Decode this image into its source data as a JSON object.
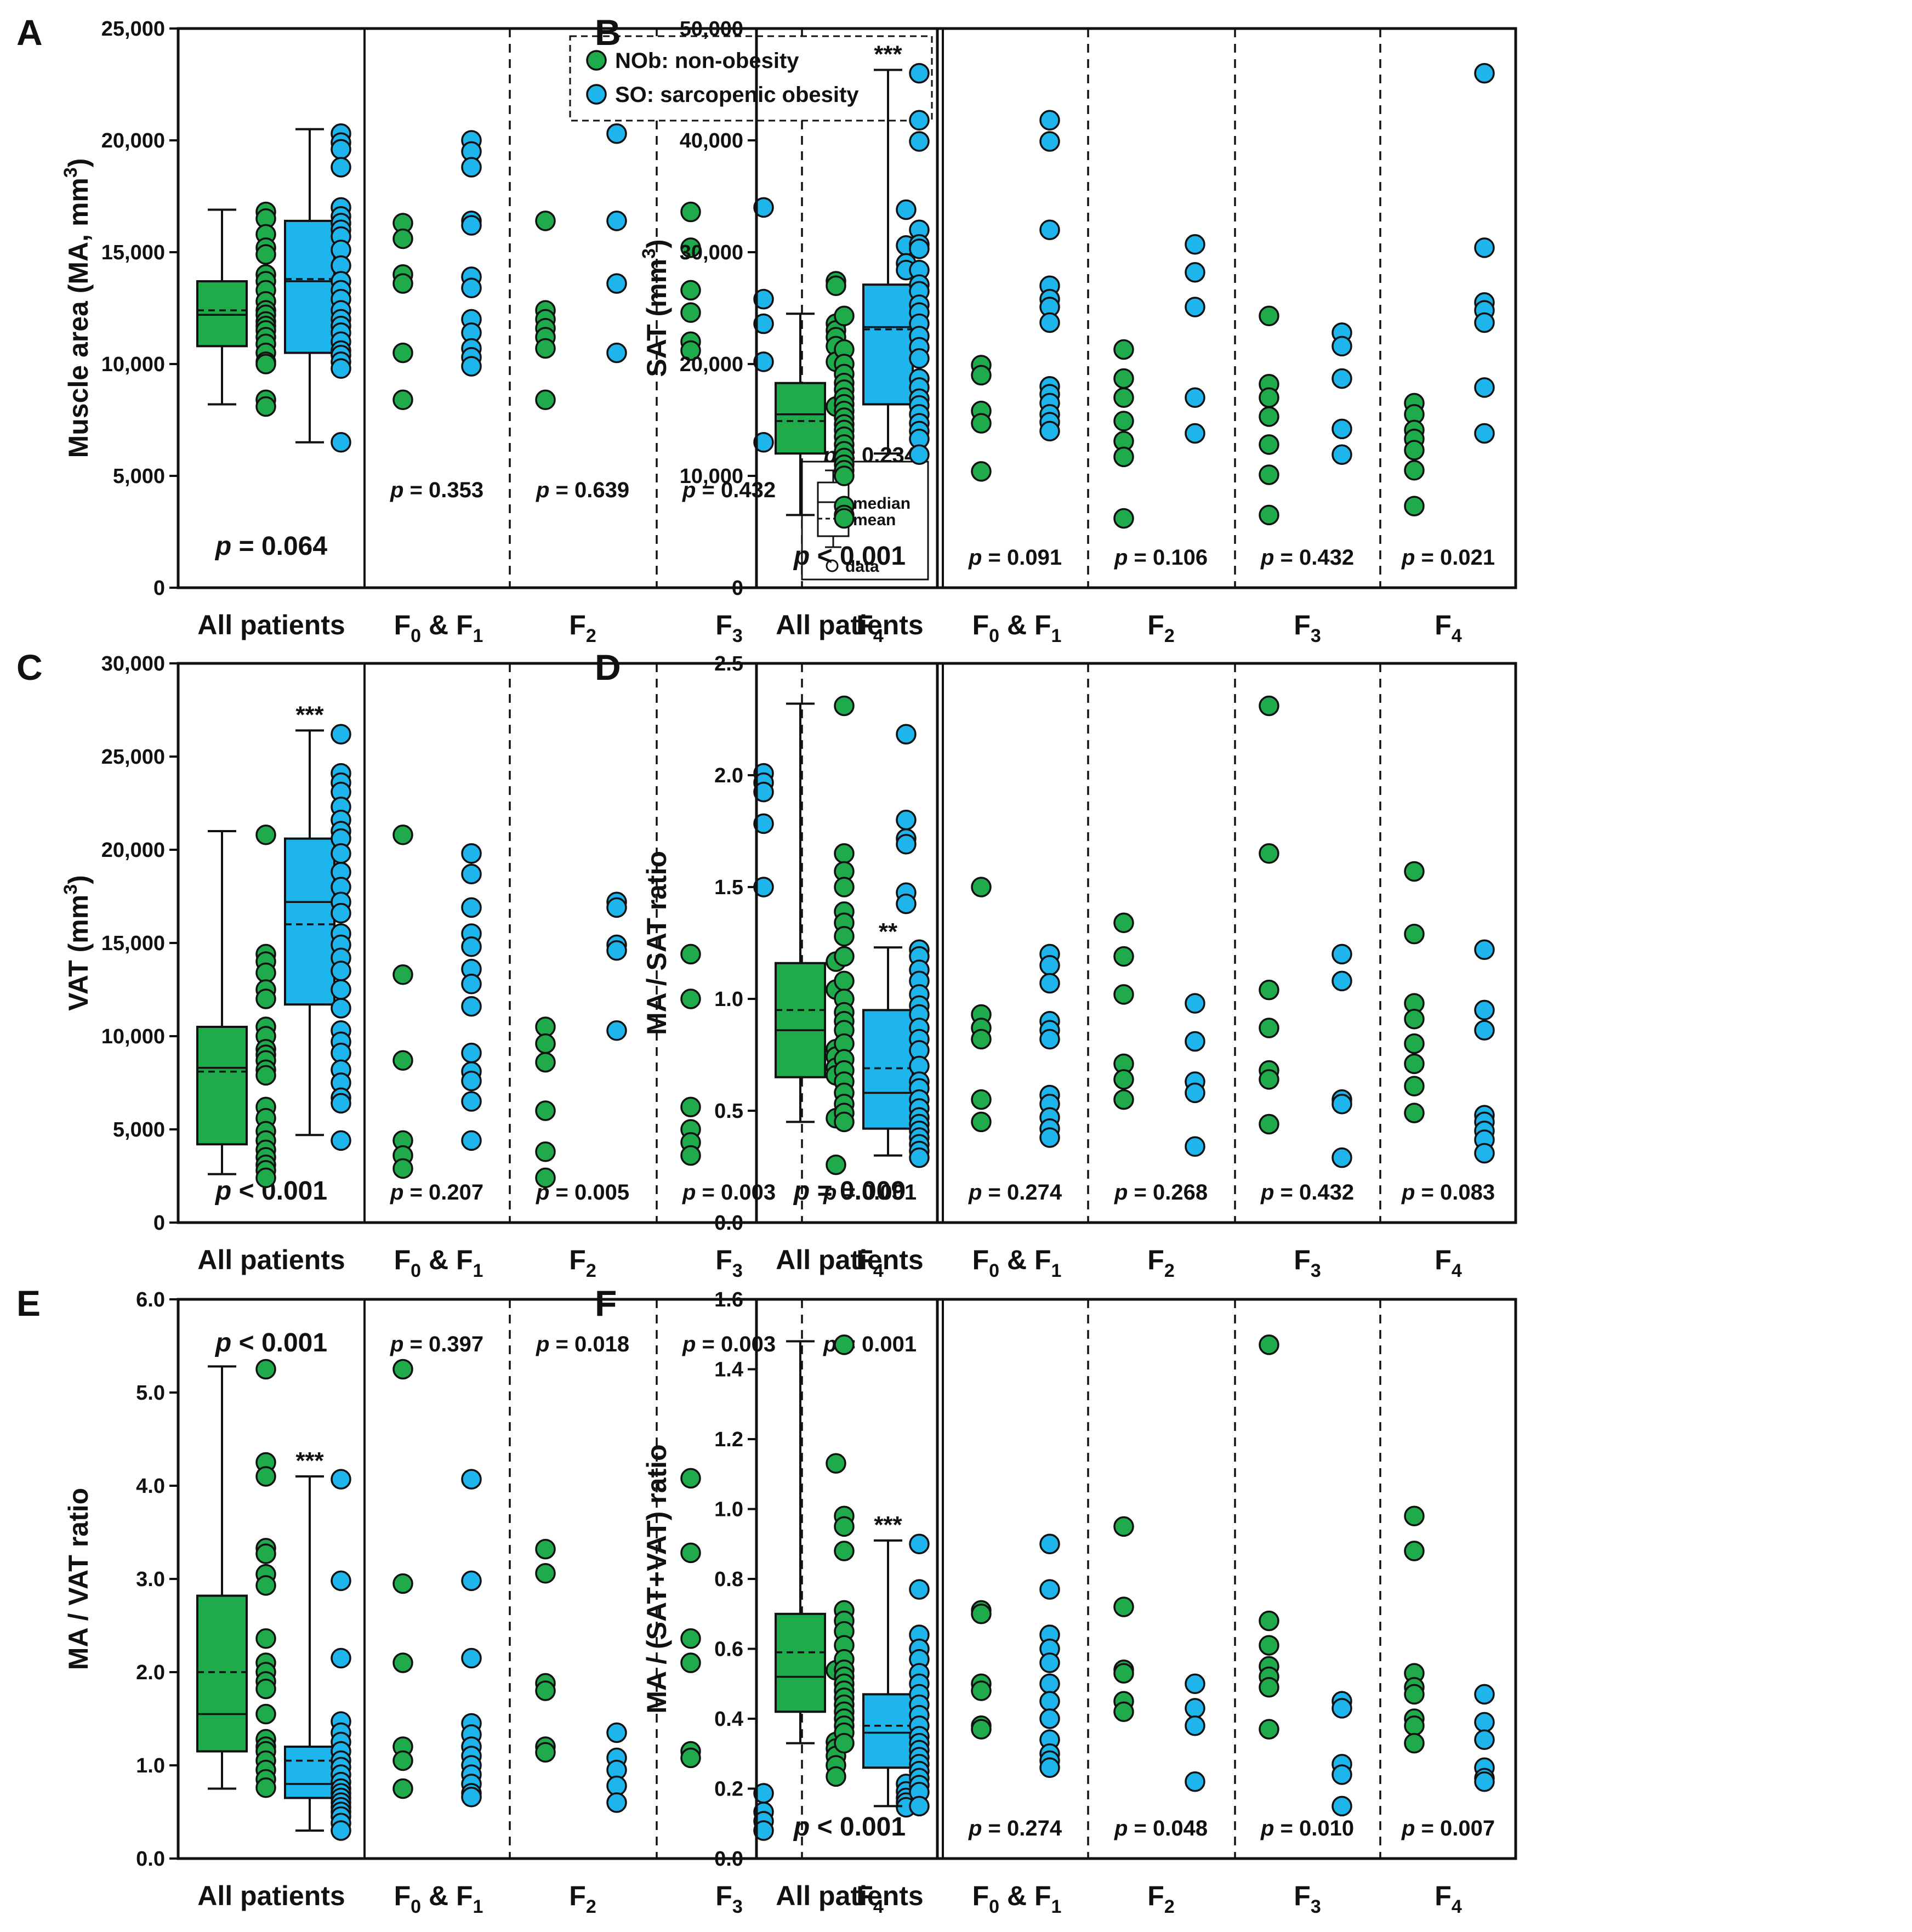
{
  "legend": {
    "nob_label": "NOb: non-obesity",
    "so_label": "SO: sarcopenic obesity",
    "key_median": "median",
    "key_mean": "mean",
    "key_data": "data"
  },
  "colors": {
    "nob": "#1faa4b",
    "so": "#1eb4ec",
    "axis": "#111111"
  },
  "groups": [
    "All patients",
    "F",
    "F",
    "F",
    "F"
  ],
  "group_subscripts": [
    [
      "0",
      "1"
    ],
    [
      "2"
    ],
    [
      "3"
    ],
    [
      "4"
    ]
  ],
  "chart_data": [
    {
      "type": "box+scatter",
      "letter": "A",
      "ylabel": "Muscle area (MA, mm3)",
      "ylim": [
        0,
        25000
      ],
      "yticks": [
        "0",
        "5,000",
        "10,000",
        "15,000",
        "20,000",
        "25,000"
      ],
      "yvals": [
        0,
        5000,
        10000,
        15000,
        20000,
        25000
      ],
      "pvalue_row": "bottom",
      "pvalues": [
        "p = 0.064",
        "p = 0.353",
        "p = 0.639",
        "p = 0.432",
        "p = 0.234"
      ],
      "box_nob": {
        "min": 8200,
        "q1": 10800,
        "median": 12200,
        "mean": 12400,
        "q3": 13700,
        "max": 16900
      },
      "box_so": {
        "min": 6500,
        "q1": 10500,
        "median": 13700,
        "mean": 13800,
        "q3": 16400,
        "max": 20500
      },
      "stars_so": "",
      "all_nob": [
        16800,
        16500,
        15800,
        15200,
        14900,
        14000,
        13700,
        13300,
        12800,
        12400,
        12200,
        11900,
        11700,
        11500,
        11200,
        10900,
        10500,
        10100,
        10000,
        8400,
        8100
      ],
      "all_so": [
        20300,
        19900,
        19600,
        18800,
        17000,
        16600,
        16300,
        16000,
        15700,
        15100,
        14400,
        13700,
        13300,
        12900,
        12400,
        12000,
        11700,
        11400,
        11000,
        10600,
        10400,
        10100,
        9800,
        6500
      ],
      "f01_nob": [
        16300,
        15600,
        14000,
        13600,
        10500,
        8400
      ],
      "f01_so": [
        20000,
        19500,
        18800,
        16400,
        16200,
        13900,
        13400,
        12000,
        11400,
        10700,
        10300,
        9900
      ],
      "f2_nob": [
        16400,
        12400,
        12000,
        11600,
        11200,
        10700,
        8400
      ],
      "f2_so": [
        20300,
        16400,
        13600,
        10500
      ],
      "f3_nob": [
        16800,
        15200,
        13300,
        12300,
        11000,
        10600
      ],
      "f3_so": [
        17000,
        12900,
        11800,
        10100,
        6500
      ],
      "f4_nob": [
        13700,
        13500,
        11800,
        11500,
        11200,
        10800,
        10100,
        8100
      ],
      "f4_so": [
        16900,
        15300,
        14500,
        14200,
        13100,
        11400,
        10300,
        9400
      ]
    },
    {
      "type": "box+scatter",
      "letter": "B",
      "ylabel": "SAT (mm3)",
      "ylim": [
        0,
        50000
      ],
      "yticks": [
        "0",
        "10,000",
        "20,000",
        "30,000",
        "40,000",
        "50,000"
      ],
      "yvals": [
        0,
        10000,
        20000,
        30000,
        40000,
        50000
      ],
      "pvalue_row": "bottom",
      "pvalues": [
        "p < 0.001",
        "p = 0.091",
        "p = 0.106",
        "p = 0.432",
        "p = 0.021"
      ],
      "box_nob": {
        "min": 6500,
        "q1": 12000,
        "median": 15500,
        "mean": 14900,
        "q3": 18300,
        "max": 24500
      },
      "box_so": {
        "min": 12000,
        "q1": 16400,
        "median": 23300,
        "mean": 23100,
        "q3": 27100,
        "max": 46300
      },
      "stars_so": "***",
      "all_nob": [
        24300,
        21300,
        20000,
        19100,
        18300,
        17700,
        17000,
        16400,
        15800,
        15200,
        14600,
        14100,
        13500,
        12800,
        12200,
        11600,
        11000,
        10500,
        10000,
        7300,
        6500,
        6200
      ],
      "all_so": [
        46000,
        41800,
        39900,
        32000,
        30700,
        30300,
        28400,
        27100,
        26500,
        25300,
        24600,
        23600,
        22500,
        21500,
        20500,
        18700,
        17900,
        16900,
        16300,
        15500,
        14700,
        14000,
        13300,
        11900
      ],
      "f01_nob": [
        19900,
        19000,
        15800,
        14700,
        10400
      ],
      "f01_so": [
        41800,
        39900,
        32000,
        27000,
        25800,
        25100,
        23700,
        18000,
        17300,
        16500,
        15500,
        14800,
        14000
      ],
      "f2_nob": [
        21300,
        18700,
        17000,
        14900,
        13100,
        11700,
        6200
      ],
      "f2_so": [
        30700,
        28200,
        25100,
        17000,
        13800
      ],
      "f3_nob": [
        24300,
        18200,
        17000,
        15300,
        12800,
        10100,
        6500
      ],
      "f3_so": [
        22800,
        21600,
        18700,
        14200,
        11900
      ],
      "f4_nob": [
        16500,
        15500,
        14100,
        13300,
        12300,
        10500,
        7300
      ],
      "f4_so": [
        46000,
        30400,
        25500,
        24800,
        23700,
        17900,
        13800
      ]
    },
    {
      "type": "box+scatter",
      "letter": "C",
      "ylabel": "VAT (mm3)",
      "ylim": [
        0,
        30000
      ],
      "yticks": [
        "0",
        "5,000",
        "10,000",
        "15,000",
        "20,000",
        "25,000",
        "30,000"
      ],
      "yvals": [
        0,
        5000,
        10000,
        15000,
        20000,
        25000,
        30000
      ],
      "pvalue_row": "bottom",
      "pvalues": [
        "p < 0.001",
        "p = 0.207",
        "p = 0.005",
        "p = 0.003",
        "p = 0.001"
      ],
      "box_nob": {
        "min": 2600,
        "q1": 4200,
        "median": 8300,
        "mean": 8100,
        "q3": 10500,
        "max": 21000
      },
      "box_so": {
        "min": 4700,
        "q1": 11700,
        "median": 17200,
        "mean": 16000,
        "q3": 20600,
        "max": 26400
      },
      "stars_so": "***",
      "all_nob": [
        20800,
        14400,
        14000,
        13400,
        12500,
        12000,
        10500,
        10000,
        9300,
        9000,
        8700,
        8200,
        7900,
        6200,
        5600,
        4900,
        4400,
        3900,
        3500,
        3100,
        2800,
        2400
      ],
      "all_so": [
        26200,
        24100,
        23600,
        23100,
        22300,
        21600,
        21000,
        20600,
        19800,
        18800,
        18000,
        17200,
        16600,
        15500,
        14900,
        14200,
        13500,
        12500,
        11500,
        10300,
        9700,
        9100,
        8200,
        7500,
        6700,
        6400,
        4400
      ],
      "f01_nob": [
        20800,
        13300,
        8700,
        4400,
        3600,
        2900
      ],
      "f01_so": [
        19800,
        18700,
        16900,
        15500,
        14800,
        13600,
        12800,
        11600,
        9100,
        8100,
        7600,
        6500,
        4400
      ],
      "f2_nob": [
        10500,
        9600,
        8600,
        6000,
        3800,
        2400
      ],
      "f2_so": [
        17200,
        16900,
        14900,
        14600,
        10300
      ],
      "f3_nob": [
        14400,
        12000,
        6200,
        5000,
        4300,
        3600
      ],
      "f3_so": [
        24100,
        23600,
        23100,
        21400,
        18000
      ],
      "f4_nob": [
        14000,
        12500,
        9300,
        8900,
        8300,
        7900,
        5600,
        3100
      ],
      "f4_so": [
        26200,
        21600,
        20600,
        20300,
        17700,
        17100,
        9700
      ]
    },
    {
      "type": "box+scatter",
      "letter": "D",
      "ylabel": "MA / SAT ratio",
      "ylim": [
        0,
        2.5
      ],
      "yticks": [
        "0.0",
        "0.5",
        "1.0",
        "1.5",
        "2.0",
        "2.5"
      ],
      "yvals": [
        0,
        0.5,
        1.0,
        1.5,
        2.0,
        2.5
      ],
      "pvalue_row": "bottom",
      "pvalues": [
        "p = 0.009",
        "p = 0.274",
        "p = 0.268",
        "p = 0.432",
        "p = 0.083"
      ],
      "box_nob": {
        "min": 0.45,
        "q1": 0.65,
        "median": 0.86,
        "mean": 0.95,
        "q3": 1.16,
        "max": 2.32
      },
      "box_so": {
        "min": 0.3,
        "q1": 0.42,
        "median": 0.58,
        "mean": 0.69,
        "q3": 0.95,
        "max": 1.23
      },
      "stars_so": "**",
      "all_nob": [
        2.31,
        1.65,
        1.57,
        1.5,
        1.39,
        1.34,
        1.28,
        1.19,
        1.08,
        1.0,
        0.94,
        0.9,
        0.86,
        0.8,
        0.73,
        0.68,
        0.63,
        0.58,
        0.53,
        0.49,
        0.45
      ],
      "all_so": [
        1.22,
        1.19,
        1.13,
        1.08,
        1.02,
        0.97,
        0.93,
        0.87,
        0.82,
        0.77,
        0.7,
        0.63,
        0.6,
        0.55,
        0.51,
        0.47,
        0.44,
        0.41,
        0.38,
        0.35,
        0.32,
        0.29
      ],
      "f01_nob": [
        1.5,
        0.93,
        0.87,
        0.82,
        0.55,
        0.45
      ],
      "f01_so": [
        1.2,
        1.15,
        1.07,
        0.9,
        0.86,
        0.82,
        0.57,
        0.53,
        0.47,
        0.42,
        0.38
      ],
      "f2_nob": [
        1.34,
        1.19,
        1.02,
        0.71,
        0.64,
        0.55
      ],
      "f2_so": [
        0.98,
        0.81,
        0.63,
        0.58,
        0.34
      ],
      "f3_nob": [
        2.31,
        1.65,
        1.04,
        0.87,
        0.68,
        0.64,
        0.44
      ],
      "f3_so": [
        1.2,
        1.08,
        0.55,
        0.53,
        0.29
      ],
      "f4_nob": [
        1.57,
        1.29,
        0.98,
        0.91,
        0.8,
        0.71,
        0.61,
        0.49
      ],
      "f4_so": [
        1.22,
        0.95,
        0.86,
        0.48,
        0.45,
        0.41,
        0.37,
        0.31
      ]
    },
    {
      "type": "box+scatter",
      "letter": "E",
      "ylabel": "MA / VAT ratio",
      "ylim": [
        0,
        6
      ],
      "yticks": [
        "0.0",
        "1.0",
        "2.0",
        "3.0",
        "4.0",
        "5.0",
        "6.0"
      ],
      "yvals": [
        0,
        1,
        2,
        3,
        4,
        5,
        6
      ],
      "pvalue_row": "top",
      "pvalues": [
        "p < 0.001",
        "p = 0.397",
        "p = 0.018",
        "p = 0.003",
        "p = 0.001"
      ],
      "box_nob": {
        "min": 0.75,
        "q1": 1.15,
        "median": 1.55,
        "mean": 2.0,
        "q3": 2.82,
        "max": 5.28
      },
      "box_so": {
        "min": 0.3,
        "q1": 0.65,
        "median": 0.8,
        "mean": 1.05,
        "q3": 1.2,
        "max": 4.1
      },
      "stars_so": "***",
      "all_nob": [
        5.25,
        4.25,
        4.1,
        3.33,
        3.27,
        3.05,
        2.93,
        2.36,
        2.1,
        2.0,
        1.9,
        1.82,
        1.55,
        1.28,
        1.2,
        1.15,
        1.05,
        0.95,
        0.85,
        0.76
      ],
      "all_so": [
        4.07,
        2.98,
        2.15,
        1.47,
        1.35,
        1.25,
        1.15,
        1.05,
        0.98,
        0.9,
        0.82,
        0.75,
        0.7,
        0.65,
        0.6,
        0.55,
        0.5,
        0.45,
        0.38,
        0.3
      ],
      "f01_nob": [
        5.25,
        2.95,
        2.1,
        1.2,
        1.05,
        0.75
      ],
      "f01_so": [
        4.07,
        2.98,
        2.15,
        1.45,
        1.33,
        1.2,
        1.1,
        1.0,
        0.9,
        0.8,
        0.7,
        0.66
      ],
      "f2_nob": [
        3.32,
        3.06,
        1.88,
        1.8,
        1.2,
        1.14
      ],
      "f2_so": [
        1.35,
        1.08,
        0.95,
        0.78,
        0.6
      ],
      "f3_nob": [
        4.08,
        3.28,
        2.36,
        2.1,
        1.15,
        1.08
      ],
      "f3_so": [
        0.7,
        0.5,
        0.4,
        0.3
      ],
      "f4_nob": [
        4.24,
        2.02,
        1.25,
        1.18,
        1.1,
        1.0,
        0.88
      ],
      "f4_so": [
        1.16,
        0.8,
        0.72,
        0.65,
        0.6,
        0.55
      ]
    },
    {
      "type": "box+scatter",
      "letter": "F",
      "ylabel": "MA / (SAT+VAT) ratio",
      "ylim": [
        0,
        1.6
      ],
      "yticks": [
        "0.0",
        "0.2",
        "0.4",
        "0.6",
        "0.8",
        "1.0",
        "1.2",
        "1.4",
        "1.6"
      ],
      "yvals": [
        0,
        0.2,
        0.4,
        0.6,
        0.8,
        1.0,
        1.2,
        1.4,
        1.6
      ],
      "pvalue_row": "bottom",
      "pvalues": [
        "p < 0.001",
        "p = 0.274",
        "p = 0.048",
        "p = 0.010",
        "p = 0.007"
      ],
      "box_nob": {
        "min": 0.33,
        "q1": 0.42,
        "median": 0.52,
        "mean": 0.59,
        "q3": 0.7,
        "max": 1.48
      },
      "box_so": {
        "min": 0.15,
        "q1": 0.26,
        "median": 0.36,
        "mean": 0.38,
        "q3": 0.47,
        "max": 0.91
      },
      "stars_so": "***",
      "all_nob": [
        1.47,
        0.98,
        0.95,
        0.88,
        0.71,
        0.68,
        0.65,
        0.61,
        0.57,
        0.54,
        0.52,
        0.5,
        0.48,
        0.46,
        0.44,
        0.42,
        0.4,
        0.38,
        0.36,
        0.33
      ],
      "all_so": [
        0.9,
        0.77,
        0.64,
        0.6,
        0.57,
        0.53,
        0.5,
        0.47,
        0.44,
        0.41,
        0.38,
        0.35,
        0.33,
        0.31,
        0.29,
        0.27,
        0.25,
        0.23,
        0.21,
        0.19,
        0.15
      ],
      "f01_nob": [
        0.71,
        0.7,
        0.5,
        0.48,
        0.38,
        0.37
      ],
      "f01_so": [
        0.9,
        0.77,
        0.64,
        0.6,
        0.56,
        0.5,
        0.45,
        0.4,
        0.34,
        0.3,
        0.28,
        0.26
      ],
      "f2_nob": [
        0.95,
        0.72,
        0.54,
        0.53,
        0.45,
        0.42
      ],
      "f2_so": [
        0.5,
        0.43,
        0.38,
        0.22
      ],
      "f3_nob": [
        1.47,
        0.68,
        0.61,
        0.55,
        0.52,
        0.49,
        0.37
      ],
      "f3_so": [
        0.45,
        0.43,
        0.27,
        0.24,
        0.15
      ],
      "f4_nob": [
        0.98,
        0.88,
        0.53,
        0.49,
        0.47,
        0.4,
        0.38,
        0.33
      ],
      "f4_so": [
        0.47,
        0.39,
        0.34,
        0.26,
        0.23,
        0.22
      ]
    }
  ]
}
